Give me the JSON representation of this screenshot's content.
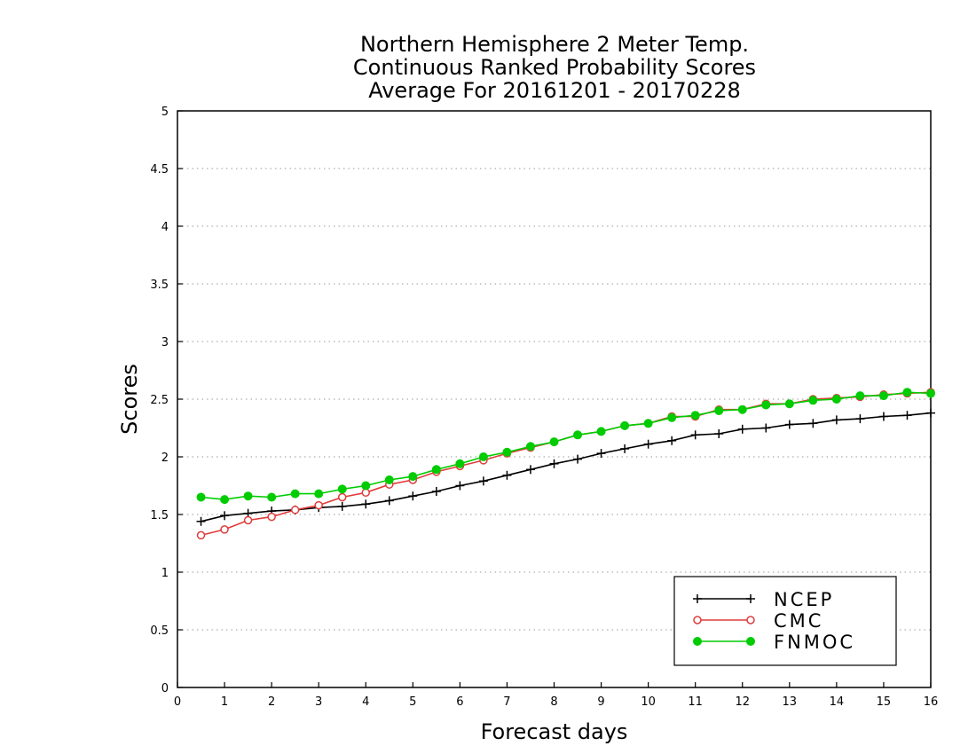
{
  "chart_data": {
    "type": "line",
    "title": [
      "Northern Hemisphere 2 Meter Temp.",
      "Continuous Ranked Probability Scores",
      "Average For 20161201 - 20170228"
    ],
    "xlabel": "Forecast days",
    "ylabel": "Scores",
    "xlim": [
      0,
      16
    ],
    "ylim": [
      0,
      5
    ],
    "xticks": [
      "0",
      "1",
      "2",
      "3",
      "4",
      "5",
      "6",
      "7",
      "8",
      "9",
      "10",
      "11",
      "12",
      "13",
      "14",
      "15",
      "16"
    ],
    "yticks": [
      "0",
      "0.5",
      "1",
      "1.5",
      "2",
      "2.5",
      "3",
      "3.5",
      "4",
      "4.5",
      "5"
    ],
    "grid": true,
    "legend_position": "bottom-right",
    "x": [
      0.5,
      1,
      1.5,
      2,
      2.5,
      3,
      3.5,
      4,
      4.5,
      5,
      5.5,
      6,
      6.5,
      7,
      7.5,
      8,
      8.5,
      9,
      9.5,
      10,
      10.5,
      11,
      11.5,
      12,
      12.5,
      13,
      13.5,
      14,
      14.5,
      15,
      15.5,
      16
    ],
    "series": [
      {
        "name": "NCEP",
        "color": "#000000",
        "marker": "plus",
        "values": [
          1.44,
          1.49,
          1.51,
          1.53,
          1.54,
          1.56,
          1.57,
          1.59,
          1.62,
          1.66,
          1.7,
          1.75,
          1.79,
          1.84,
          1.89,
          1.94,
          1.98,
          2.03,
          2.07,
          2.11,
          2.14,
          2.19,
          2.2,
          2.24,
          2.25,
          2.28,
          2.29,
          2.32,
          2.33,
          2.35,
          2.36,
          2.38
        ]
      },
      {
        "name": "CMC",
        "color": "#e03c3c",
        "marker": "open-circle",
        "values": [
          1.32,
          1.37,
          1.45,
          1.48,
          1.54,
          1.58,
          1.65,
          1.69,
          1.76,
          1.8,
          1.87,
          1.92,
          1.97,
          2.03,
          2.08,
          2.13,
          2.19,
          2.22,
          2.27,
          2.29,
          2.35,
          2.35,
          2.41,
          2.41,
          2.46,
          2.46,
          2.5,
          2.51,
          2.52,
          2.54,
          2.55,
          2.56
        ]
      },
      {
        "name": "FNMOC",
        "color": "#00cc00",
        "marker": "filled-circle",
        "values": [
          1.65,
          1.63,
          1.66,
          1.65,
          1.68,
          1.68,
          1.72,
          1.75,
          1.8,
          1.83,
          1.89,
          1.94,
          2.0,
          2.04,
          2.09,
          2.13,
          2.19,
          2.22,
          2.27,
          2.29,
          2.34,
          2.36,
          2.4,
          2.41,
          2.45,
          2.46,
          2.49,
          2.5,
          2.53,
          2.53,
          2.56,
          2.55
        ]
      }
    ]
  }
}
